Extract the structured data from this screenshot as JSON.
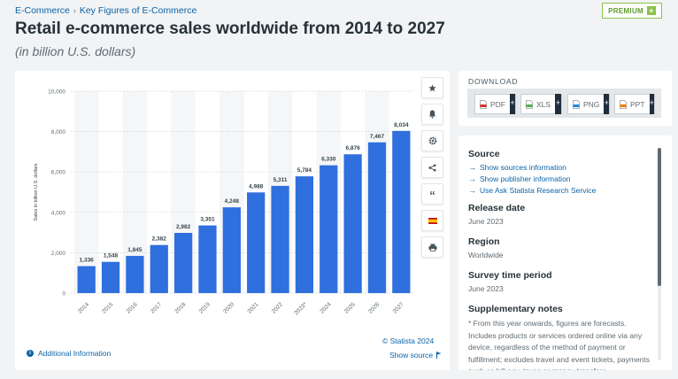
{
  "breadcrumb": {
    "item1": "E-Commerce",
    "item2": "Key Figures of E-Commerce"
  },
  "premium": {
    "label": "PREMIUM",
    "plus": "+"
  },
  "page": {
    "title": "Retail e-commerce sales worldwide from 2014 to 2027",
    "subtitle": "(in billion U.S. dollars)"
  },
  "chart_data": {
    "type": "bar",
    "title": "",
    "categories": [
      "2014",
      "2015",
      "2016",
      "2017",
      "2018",
      "2019",
      "2020",
      "2021",
      "2022",
      "2023*",
      "2024",
      "2025",
      "2026",
      "2027"
    ],
    "values": [
      1336,
      1548,
      1845,
      2382,
      2982,
      3351,
      4248,
      4988,
      5311,
      5784,
      6330,
      6876,
      7467,
      8034
    ],
    "value_labels": [
      "1,336",
      "1,548",
      "1,845",
      "2,382",
      "2,982",
      "3,351",
      "4,248",
      "4,988",
      "5,311",
      "5,784",
      "6,330",
      "6,876",
      "7,467",
      "8,034"
    ],
    "ylabel": "Sales in billion U.S. dollars",
    "xlabel": "",
    "ylim": [
      0,
      10000
    ],
    "yticks": [
      0,
      2000,
      4000,
      6000,
      8000,
      10000
    ],
    "ytick_labels": [
      "0",
      "2,000",
      "4,000",
      "6,000",
      "8,000",
      "10,000"
    ],
    "bar_color": "#2f6fde",
    "grid": true,
    "legend": "none"
  },
  "chart_footer": {
    "credit": "© Statista 2024",
    "additional_info": "Additional Information",
    "show_source": "Show source"
  },
  "tools": [
    "star-icon",
    "bell-icon",
    "gear-icon",
    "share-icon",
    "quote-icon",
    "flag-icon",
    "print-icon"
  ],
  "download": {
    "title": "DOWNLOAD",
    "buttons": [
      {
        "label": "PDF",
        "color": "#d93025"
      },
      {
        "label": "XLS",
        "color": "#4caf50"
      },
      {
        "label": "PNG",
        "color": "#1e88e5"
      },
      {
        "label": "PPT",
        "color": "#f57c00"
      }
    ],
    "plus": "+"
  },
  "info": {
    "source_title": "Source",
    "source_links": [
      "Show sources information",
      "Show publisher information",
      "Use Ask Statista Research Service"
    ],
    "release_title": "Release date",
    "release_value": "June 2023",
    "region_title": "Region",
    "region_value": "Worldwide",
    "survey_title": "Survey time period",
    "survey_value": "June 2023",
    "notes_title": "Supplementary notes",
    "notes_text": "* From this year onwards, figures are forecasts. Includes products or services ordered online via any device, regardless of the method of payment or fulfillment; excludes travel and event tickets, payments such as bill pay, taxes or money transfers"
  }
}
